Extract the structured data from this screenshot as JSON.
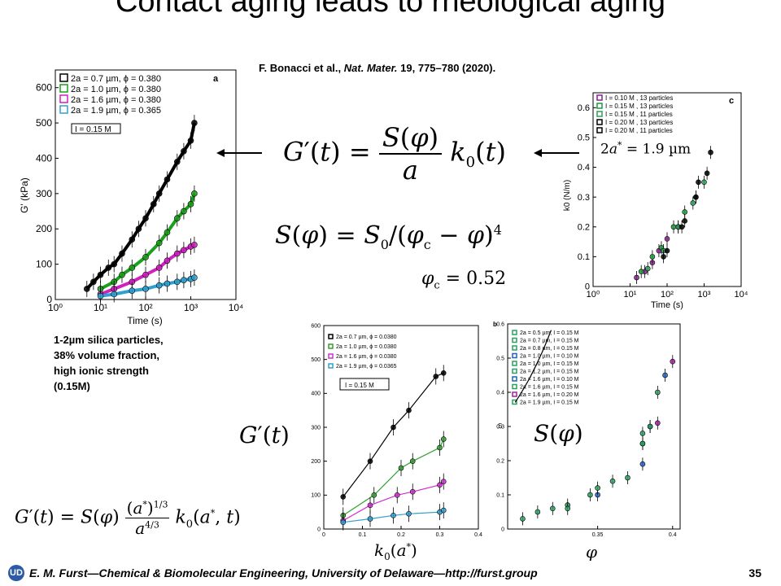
{
  "title": "Contact aging leads to rheological aging",
  "reference": {
    "authors": "F. Bonacci et al.,",
    "journal": "Nat. Mater.",
    "rest": "19, 775–780 (2020)."
  },
  "note": "1-2µm silica particles,\n38% volume fraction,\nhigh ionic strength\n(0.15M)",
  "footer": {
    "text": "E. M. Furst—Chemical & Biomolecular Engineering, University of Delaware—http://furst.group",
    "page": "35"
  },
  "equations": {
    "main": "G′(t) = S(φ)/a · k0(t)",
    "s_phi": "S(φ) = S0/(φc − φ)^4",
    "phi_c": "φc = 0.52",
    "g_label": "G′(t)",
    "s_label": "S(φ)",
    "scaled": "G′(t) = S(φ) (a*)^1/3 / a^4/3 · k0(a*, t)",
    "a_star": "2a* = 1.9 µm"
  },
  "chart_data": [
    {
      "type": "scatter",
      "panel": "a",
      "xlabel": "Time (s)",
      "ylabel": "G' (kPa)",
      "xscale": "log",
      "xlim": [
        1,
        10000
      ],
      "ylim": [
        0,
        650
      ],
      "xticks": [
        "10⁰",
        "10¹",
        "10²",
        "10³",
        "10⁴"
      ],
      "yticks": [
        0,
        100,
        200,
        300,
        400,
        500,
        600
      ],
      "annotation": "I = 0.15 M",
      "series": [
        {
          "name": "2a = 0.7 µm, ϕ = 0.380",
          "color": "#000000",
          "x": [
            5,
            7,
            10,
            15,
            20,
            30,
            50,
            70,
            100,
            150,
            200,
            300,
            500,
            700,
            1000,
            1200
          ],
          "y": [
            30,
            50,
            70,
            90,
            100,
            130,
            170,
            200,
            230,
            270,
            300,
            340,
            390,
            420,
            450,
            500
          ]
        },
        {
          "name": "2a = 1.0 µm, ϕ = 0.380",
          "color": "#1aa01a",
          "x": [
            10,
            20,
            30,
            50,
            100,
            200,
            300,
            500,
            700,
            1000,
            1200
          ],
          "y": [
            30,
            50,
            70,
            90,
            120,
            160,
            190,
            230,
            250,
            270,
            300
          ]
        },
        {
          "name": "2a = 1.6 µm, ϕ = 0.380",
          "color": "#d020c0",
          "x": [
            10,
            20,
            50,
            100,
            200,
            300,
            500,
            700,
            1000,
            1200
          ],
          "y": [
            15,
            30,
            50,
            70,
            90,
            110,
            130,
            140,
            150,
            155
          ]
        },
        {
          "name": "2a = 1.9 µm, ϕ = 0.365",
          "color": "#30a0d0",
          "x": [
            10,
            20,
            50,
            100,
            200,
            300,
            500,
            700,
            1000,
            1200
          ],
          "y": [
            10,
            15,
            25,
            30,
            40,
            45,
            50,
            55,
            58,
            62
          ]
        }
      ]
    },
    {
      "type": "scatter",
      "panel": "c",
      "xlabel": "Time (s)",
      "ylabel": "k0 (N/m)",
      "xscale": "log",
      "xlim": [
        1,
        10000
      ],
      "ylim": [
        0,
        0.65
      ],
      "xticks": [
        "10⁰",
        "10¹",
        "10²",
        "10³",
        "10⁴"
      ],
      "yticks": [
        0,
        0.1,
        0.2,
        0.3,
        0.4,
        0.5,
        0.6
      ],
      "series": [
        {
          "name": "I = 0.10 M , 13 particles",
          "color": "#8a2090",
          "x": [
            15,
            25,
            40,
            60,
            100,
            200
          ],
          "y": [
            0.03,
            0.05,
            0.08,
            0.12,
            0.16,
            0.2
          ]
        },
        {
          "name": "I = 0.15 M , 13 particles",
          "color": "#1a9a3a",
          "x": [
            20,
            40,
            70,
            150,
            300,
            600
          ],
          "y": [
            0.05,
            0.1,
            0.13,
            0.2,
            0.25,
            0.3
          ]
        },
        {
          "name": "I = 0.15 M , 11 particles",
          "color": "#2aa05a",
          "x": [
            30,
            80,
            200,
            500,
            1000
          ],
          "y": [
            0.06,
            0.12,
            0.2,
            0.28,
            0.35
          ]
        },
        {
          "name": "I = 0.20 M , 13 particles",
          "color": "#000000",
          "x": [
            100,
            300,
            700,
            1500
          ],
          "y": [
            0.12,
            0.22,
            0.35,
            0.45
          ]
        },
        {
          "name": "I = 0.20 M , 11 particles",
          "color": "#000000",
          "x": [
            80,
            250,
            600,
            1200
          ],
          "y": [
            0.1,
            0.2,
            0.3,
            0.38
          ]
        }
      ]
    },
    {
      "type": "scatter",
      "panel": "bottom-left",
      "xlabel": "k0(a*)",
      "ylabel": "",
      "xlim": [
        0,
        0.4
      ],
      "ylim": [
        0,
        600
      ],
      "xticks": [
        0,
        0.1,
        0.2,
        0.3,
        0.4
      ],
      "yticks": [
        0,
        100,
        200,
        300,
        400,
        500,
        600
      ],
      "annotation": "I = 0.15 M",
      "series": [
        {
          "name": "2a = 0.7 µm, ϕ = 0.0380",
          "color": "#000000",
          "x": [
            0.05,
            0.12,
            0.18,
            0.22,
            0.29,
            0.31
          ],
          "y": [
            95,
            200,
            300,
            350,
            450,
            460
          ]
        },
        {
          "name": "2a = 1.0 µm, ϕ = 0.0380",
          "color": "#30a030",
          "x": [
            0.05,
            0.13,
            0.2,
            0.23,
            0.3,
            0.31
          ],
          "y": [
            40,
            100,
            180,
            200,
            240,
            265
          ]
        },
        {
          "name": "2a = 1.6 µm, ϕ = 0.0380",
          "color": "#d030d0",
          "x": [
            0.05,
            0.12,
            0.19,
            0.23,
            0.3,
            0.31
          ],
          "y": [
            25,
            70,
            100,
            110,
            130,
            140
          ]
        },
        {
          "name": "2a = 1.9 µm, ϕ = 0.0365",
          "color": "#30a0d0",
          "x": [
            0.05,
            0.12,
            0.18,
            0.22,
            0.3,
            0.31
          ],
          "y": [
            20,
            30,
            40,
            45,
            50,
            55
          ]
        }
      ]
    },
    {
      "type": "scatter",
      "panel": "b",
      "xlabel": "ϕ",
      "ylabel": "S",
      "xlim": [
        0.29,
        0.405
      ],
      "ylim": [
        0,
        0.6
      ],
      "xticks": [
        0.35,
        0.4
      ],
      "yticks": [
        0,
        0.1,
        0.2,
        0.3,
        0.4,
        0.5,
        0.6
      ],
      "series": [
        {
          "name": "2a = 0.5 µm, I = 0.15 M",
          "color": "#2aa060",
          "x": [
            0.3,
            0.32
          ],
          "y": [
            0.03,
            0.06
          ]
        },
        {
          "name": "2a = 0.7 µm, I = 0.15 M",
          "color": "#2aa060",
          "x": [
            0.31,
            0.33
          ],
          "y": [
            0.05,
            0.07
          ]
        },
        {
          "name": "2a = 0.8 µm, I = 0.15 M",
          "color": "#2aa060",
          "x": [
            0.33,
            0.345
          ],
          "y": [
            0.06,
            0.1
          ]
        },
        {
          "name": "2a = 1.0 µm, I = 0.10 M",
          "color": "#2060c0",
          "x": [
            0.35,
            0.38
          ],
          "y": [
            0.1,
            0.19
          ]
        },
        {
          "name": "2a = 1.0 µm, I = 0.15 M",
          "color": "#2aa060",
          "x": [
            0.35,
            0.38
          ],
          "y": [
            0.12,
            0.25
          ]
        },
        {
          "name": "2a = 1.2 µm, I = 0.15 M",
          "color": "#2aa060",
          "x": [
            0.36,
            0.38
          ],
          "y": [
            0.14,
            0.28
          ]
        },
        {
          "name": "2a = 1.6 µm, I = 0.10 M",
          "color": "#2060c0",
          "x": [
            0.385,
            0.395
          ],
          "y": [
            0.3,
            0.45
          ]
        },
        {
          "name": "2a = 1.6 µm, I = 0.15 M",
          "color": "#2aa060",
          "x": [
            0.385,
            0.39
          ],
          "y": [
            0.3,
            0.4
          ]
        },
        {
          "name": "2a = 1.6 µm, I = 0.20 M",
          "color": "#a020a0",
          "x": [
            0.39,
            0.4
          ],
          "y": [
            0.31,
            0.49
          ]
        },
        {
          "name": "2a = 1.9 µm, I = 0.15 M",
          "color": "#2aa060",
          "x": [
            0.37,
            0.38
          ],
          "y": [
            0.15,
            0.25
          ]
        }
      ]
    }
  ]
}
